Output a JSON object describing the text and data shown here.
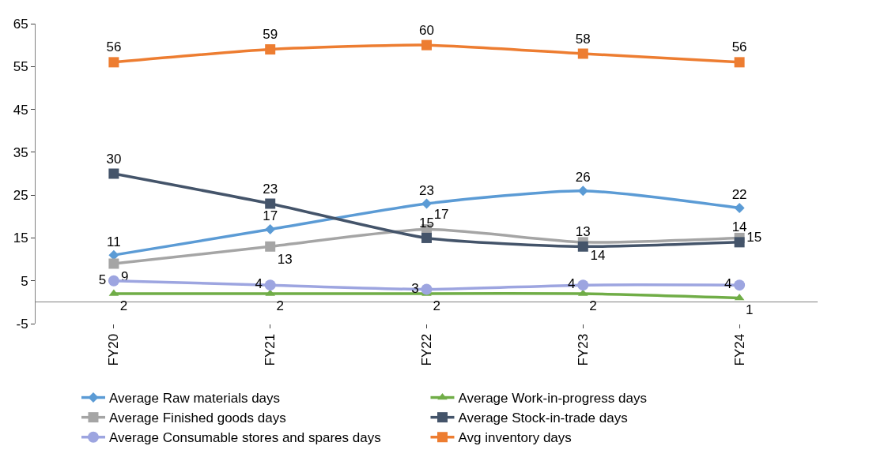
{
  "chart_data": {
    "type": "line",
    "categories": [
      "FY20",
      "FY21",
      "FY22",
      "FY23",
      "FY24"
    ],
    "series": [
      {
        "name": "Average Raw materials days",
        "color": "#5b9bd5",
        "marker": "diamond",
        "values": [
          11,
          17,
          23,
          26,
          22
        ]
      },
      {
        "name": "Average Work-in-progress days",
        "color": "#70ad47",
        "marker": "triangle",
        "values": [
          2,
          2,
          2,
          2,
          1
        ]
      },
      {
        "name": "Average Finished goods days",
        "color": "#a5a5a5",
        "marker": "square",
        "values": [
          9,
          13,
          17,
          14,
          15
        ]
      },
      {
        "name": "Average Stock-in-trade days",
        "color": "#44546a",
        "marker": "square",
        "values": [
          30,
          23,
          15,
          13,
          14
        ]
      },
      {
        "name": "Average Consumable stores and spares days",
        "color": "#9da5e0",
        "marker": "circle",
        "values": [
          5,
          4,
          3,
          4,
          4
        ]
      },
      {
        "name": "Avg inventory days",
        "color": "#ed7d31",
        "marker": "square",
        "values": [
          56,
          59,
          60,
          58,
          56
        ]
      }
    ],
    "ylim": [
      -5,
      65
    ],
    "yticks": [
      -5,
      5,
      15,
      25,
      35,
      45,
      55,
      65
    ],
    "legend": "bottom",
    "data_labels": true
  }
}
